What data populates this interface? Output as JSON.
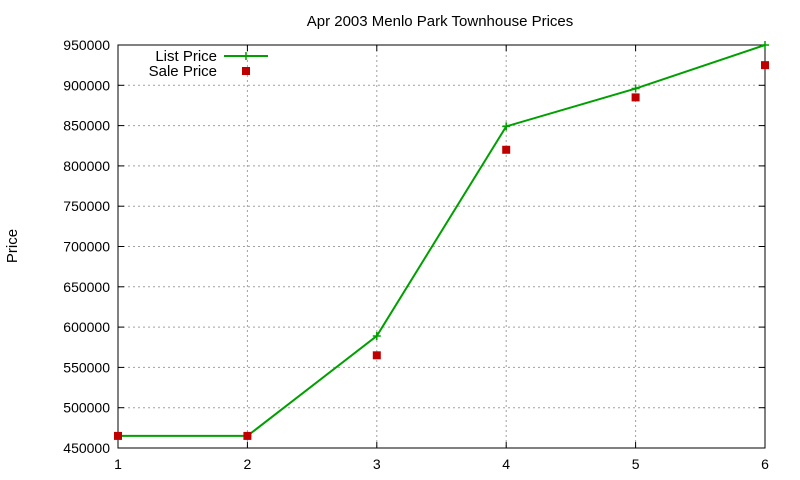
{
  "chart_data": {
    "type": "line",
    "title": "Apr 2003 Menlo Park Townhouse Prices",
    "xlabel": "",
    "ylabel": "Price",
    "x": [
      1,
      2,
      3,
      4,
      5,
      6
    ],
    "xlim": [
      1,
      6
    ],
    "ylim": [
      450000,
      950000
    ],
    "xticks": [
      "1",
      "2",
      "3",
      "4",
      "5",
      "6"
    ],
    "yticks": [
      "450000",
      "500000",
      "550000",
      "600000",
      "650000",
      "700000",
      "750000",
      "800000",
      "850000",
      "900000",
      "950000"
    ],
    "grid": true,
    "legend_position": "top-left",
    "series": [
      {
        "name": "List Price",
        "style": "line-with-plus-markers",
        "color": "#00a000",
        "values": [
          465000,
          465000,
          589000,
          849000,
          896000,
          950000
        ]
      },
      {
        "name": "Sale Price",
        "style": "square-markers",
        "color": "#c00000",
        "values": [
          465000,
          465000,
          565000,
          820000,
          885000,
          925000
        ]
      }
    ]
  }
}
